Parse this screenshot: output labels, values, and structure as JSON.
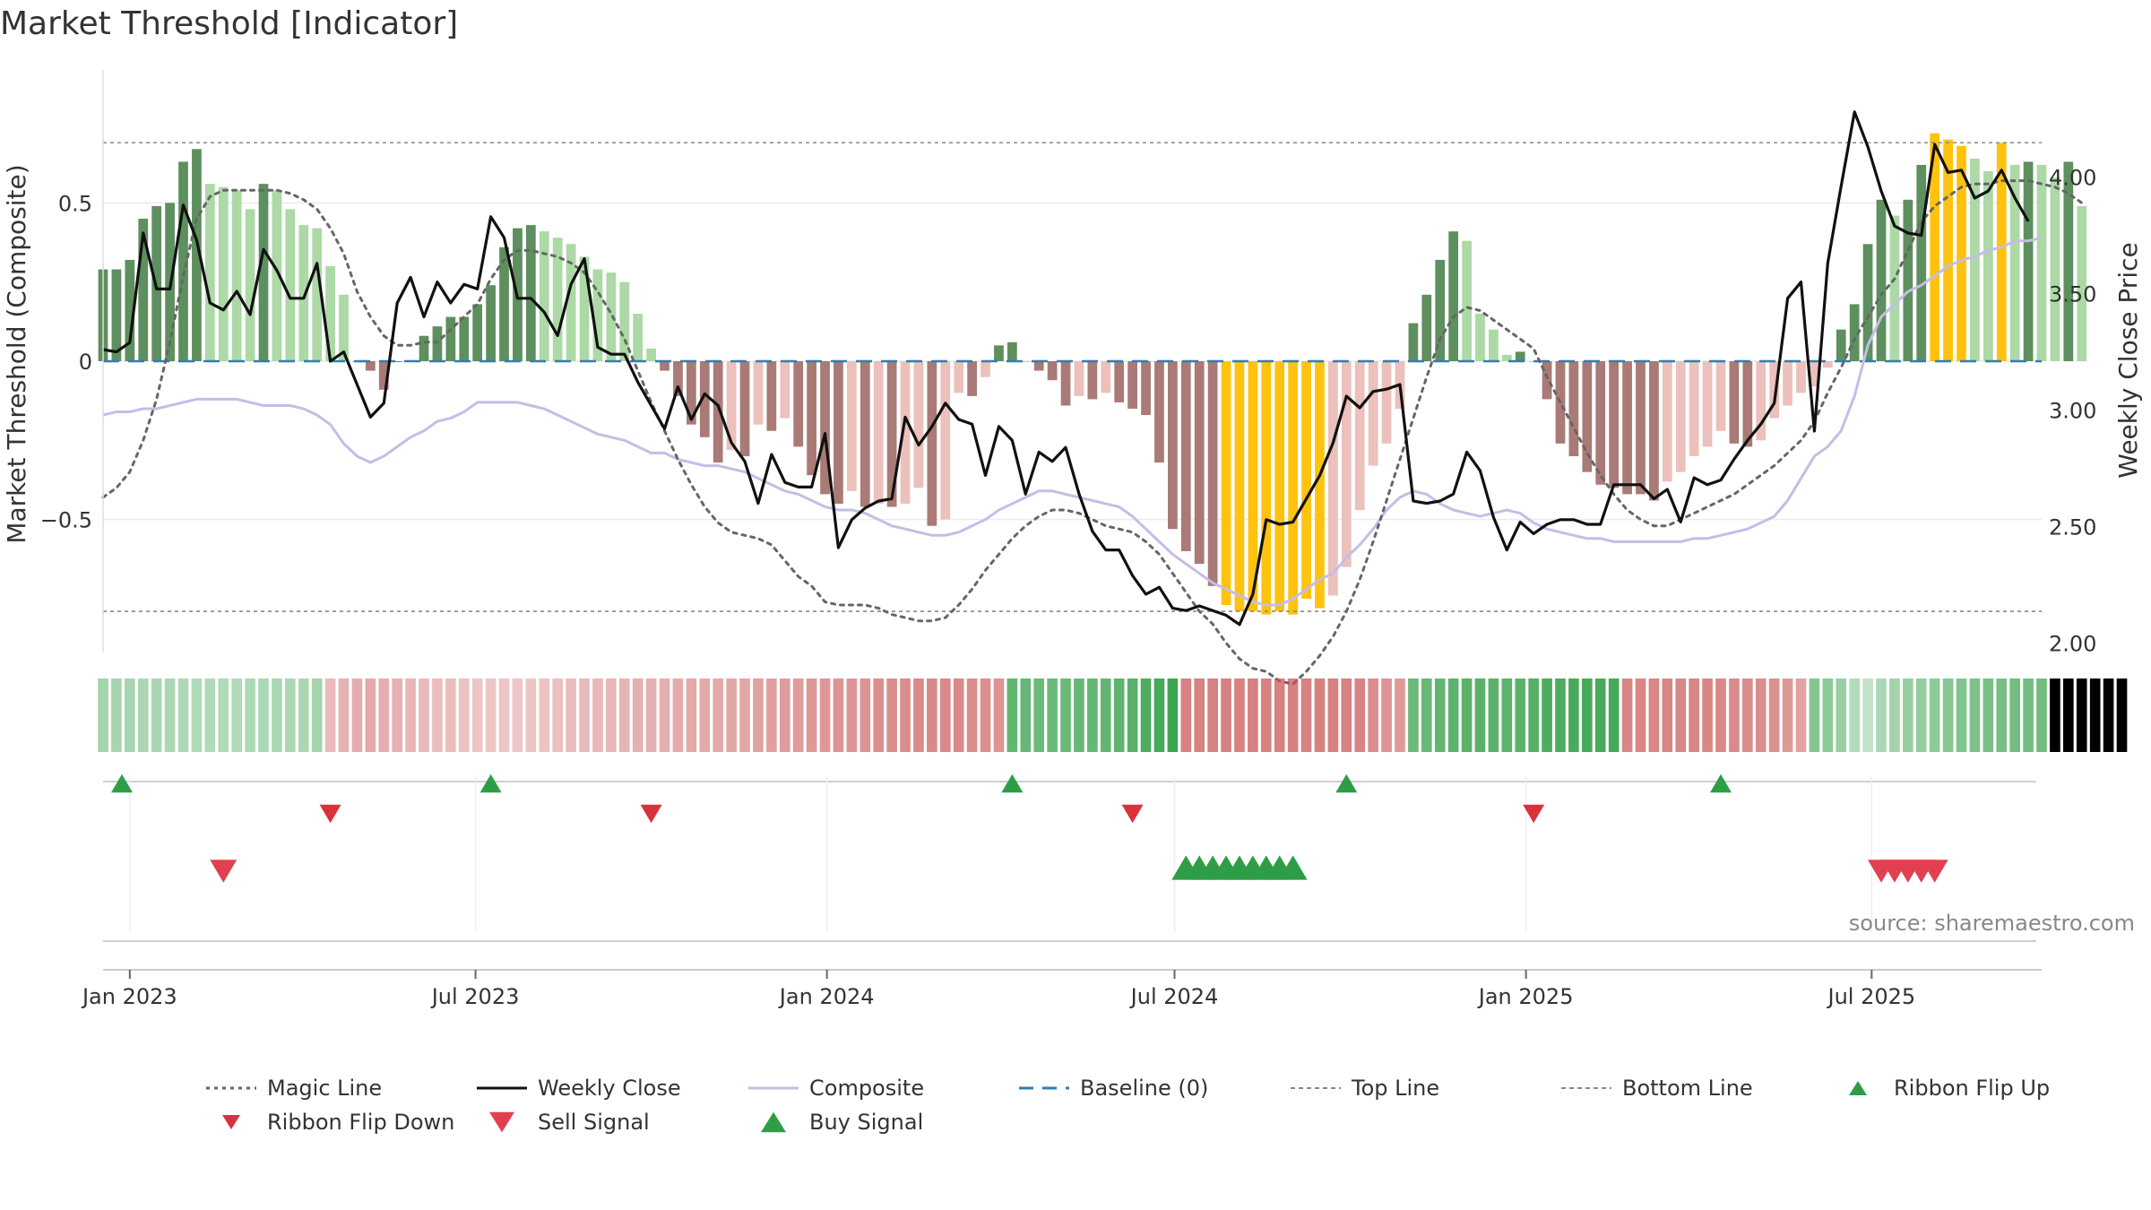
{
  "page": {
    "title": "Market Threshold [Indicator]",
    "source": "source: sharemaestro.com"
  },
  "colors": {
    "bull_dark": "#5e8f5e",
    "bull_light": "#acd9a6",
    "bear_dark": "#a97a76",
    "bear_light": "#ecc0bb",
    "extreme": "#ffc20e",
    "close": "#111111",
    "composite": "#c5bde6",
    "magic": "#666666",
    "baseline": "#2f7fb0",
    "signal_up": "#2e9e46",
    "signal_down": "#d9323a"
  },
  "chart_data": {
    "type": "bar",
    "title": "Market Threshold [Indicator]",
    "ylabel_left": "Market Threshold (Composite)",
    "ylabel_right": "Weekly Close Price",
    "x_tick_labels": [
      "Jan 2023",
      "Jul 2023",
      "Jan 2024",
      "Jul 2024",
      "Jan 2025",
      "Jul 2025"
    ],
    "x_ticks": [
      "2023-01-01",
      "2023-07-01",
      "2024-01-01",
      "2024-07-01",
      "2025-01-01",
      "2025-07-01"
    ],
    "x_range": [
      "2022-12-18",
      "2025-09-28"
    ],
    "y_left_range": [
      -0.92,
      0.92
    ],
    "y_left_ticks": [
      -0.5,
      0,
      0.5
    ],
    "y_left_tick_labels": [
      "−0.5",
      "0",
      "0.5"
    ],
    "y_right_range": [
      1.96,
      4.46
    ],
    "y_right_ticks": [
      2.0,
      2.5,
      3.0,
      3.5,
      4.0
    ],
    "y_right_tick_labels": [
      "2.00",
      "2.50",
      "3.00",
      "3.50",
      "4.00"
    ],
    "top_line": 0.69,
    "bottom_line": -0.79,
    "baseline": 0,
    "week_start": "2022-12-18",
    "composite_bars": [
      0.29,
      0.29,
      0.32,
      0.45,
      0.49,
      0.5,
      0.63,
      0.67,
      0.56,
      0.55,
      0.54,
      0.48,
      0.56,
      0.54,
      0.48,
      0.43,
      0.42,
      0.3,
      0.21,
      0.0,
      -0.03,
      -0.09,
      0.0,
      0.0,
      0.08,
      0.11,
      0.14,
      0.14,
      0.18,
      0.24,
      0.36,
      0.42,
      0.43,
      0.41,
      0.39,
      0.37,
      0.33,
      0.29,
      0.28,
      0.25,
      0.15,
      0.04,
      -0.03,
      -0.11,
      -0.2,
      -0.24,
      -0.32,
      -0.28,
      -0.3,
      -0.2,
      -0.22,
      -0.18,
      -0.27,
      -0.36,
      -0.42,
      -0.45,
      -0.41,
      -0.46,
      -0.45,
      -0.46,
      -0.45,
      -0.4,
      -0.52,
      -0.5,
      -0.1,
      -0.11,
      -0.05,
      0.05,
      0.06,
      0.0,
      -0.03,
      -0.06,
      -0.14,
      -0.11,
      -0.12,
      -0.1,
      -0.13,
      -0.15,
      -0.17,
      -0.32,
      -0.53,
      -0.6,
      -0.64,
      -0.71,
      -0.77,
      -0.79,
      -0.79,
      -0.8,
      -0.79,
      -0.8,
      -0.75,
      -0.78,
      -0.74,
      -0.65,
      -0.47,
      -0.33,
      -0.26,
      -0.15,
      0.12,
      0.21,
      0.32,
      0.41,
      0.38,
      0.15,
      0.1,
      0.02,
      0.03,
      0.0,
      -0.12,
      -0.26,
      -0.3,
      -0.35,
      -0.39,
      -0.4,
      -0.42,
      -0.42,
      -0.44,
      -0.38,
      -0.35,
      -0.3,
      -0.27,
      -0.22,
      -0.26,
      -0.27,
      -0.25,
      -0.18,
      -0.14,
      -0.1,
      -0.08,
      -0.02,
      0.1,
      0.18,
      0.37,
      0.51,
      0.46,
      0.51,
      0.62,
      0.72,
      0.7,
      0.68,
      0.64,
      0.6,
      0.69,
      0.62,
      0.63,
      0.62,
      0.58,
      0.63,
      0.49
    ],
    "ribbon_flips": [
      "up",
      "up",
      "up",
      "up",
      "up",
      "up",
      "up",
      "up",
      "up",
      "up",
      "up",
      "up",
      "up",
      "up",
      "up",
      "up",
      "up",
      "dn",
      "dn",
      "dn",
      "dn",
      "dn",
      "dn",
      "dn",
      "dn",
      "dn",
      "dn",
      "dn",
      "dn",
      "dn",
      "dn",
      "dn",
      "dn",
      "dn",
      "dn",
      "dn",
      "dn",
      "dn",
      "dn",
      "dn",
      "dn",
      "dn",
      "dn",
      "dn",
      "dn",
      "dn",
      "dn",
      "dn",
      "dn",
      "dn",
      "dn",
      "dn",
      "dn",
      "dn",
      "dn",
      "dn",
      "dn",
      "dn",
      "dn",
      "dn",
      "dn",
      "dn",
      "dn",
      "dn",
      "dn",
      "dn",
      "dn",
      "dn",
      "up",
      "up",
      "up",
      "up",
      "up",
      "up",
      "up",
      "up",
      "up",
      "up",
      "up",
      "up",
      "up",
      "dn",
      "dn",
      "dn",
      "dn",
      "dn",
      "dn",
      "dn",
      "dn",
      "dn",
      "dn",
      "dn",
      "dn",
      "dn",
      "dn",
      "dn",
      "dn",
      "dn",
      "up",
      "up",
      "up",
      "up",
      "up",
      "up",
      "up",
      "up",
      "up",
      "up",
      "up",
      "up",
      "up",
      "up",
      "up",
      "up",
      "dn",
      "dn",
      "dn",
      "dn",
      "dn",
      "dn",
      "dn",
      "dn",
      "dn",
      "dn",
      "dn",
      "dn",
      "dn",
      "dn",
      "up",
      "up",
      "up",
      "up",
      "up",
      "up",
      "up",
      "up",
      "up",
      "up",
      "up",
      "up",
      "up",
      "up",
      "up",
      "up",
      "up",
      "up",
      "up",
      "up",
      "up",
      "up",
      "up",
      "up"
    ],
    "weekly_close": [
      3.26,
      3.25,
      3.29,
      3.76,
      3.52,
      3.52,
      3.88,
      3.73,
      3.46,
      3.43,
      3.51,
      3.41,
      3.69,
      3.6,
      3.48,
      3.48,
      3.63,
      3.21,
      3.25,
      3.11,
      2.97,
      3.03,
      3.46,
      3.57,
      3.4,
      3.55,
      3.46,
      3.54,
      3.52,
      3.83,
      3.74,
      3.48,
      3.48,
      3.42,
      3.32,
      3.54,
      3.65,
      3.27,
      3.24,
      3.24,
      3.12,
      3.02,
      2.92,
      3.1,
      2.96,
      3.07,
      3.02,
      2.86,
      2.78,
      2.6,
      2.81,
      2.69,
      2.67,
      2.67,
      2.9,
      2.41,
      2.53,
      2.58,
      2.61,
      2.62,
      2.97,
      2.85,
      2.93,
      3.03,
      2.96,
      2.94,
      2.72,
      2.93,
      2.87,
      2.64,
      2.82,
      2.78,
      2.84,
      2.64,
      2.48,
      2.4,
      2.4,
      2.29,
      2.21,
      2.24,
      2.15,
      2.14,
      2.16,
      2.14,
      2.12,
      2.08,
      2.21,
      2.53,
      2.51,
      2.52,
      2.62,
      2.72,
      2.86,
      3.06,
      3.01,
      3.08,
      3.09,
      3.11,
      2.61,
      2.6,
      2.61,
      2.64,
      2.82,
      2.74,
      2.54,
      2.4,
      2.52,
      2.47,
      2.51,
      2.53,
      2.53,
      2.51,
      2.51,
      2.68,
      2.68,
      2.68,
      2.62,
      2.66,
      2.52,
      2.71,
      2.68,
      2.7,
      2.79,
      2.87,
      2.94,
      3.03,
      3.48,
      3.55,
      2.91,
      3.63,
      3.96,
      4.28,
      4.13,
      3.94,
      3.79,
      3.76,
      3.75,
      4.14,
      4.02,
      4.03,
      3.91,
      3.94,
      4.03,
      3.91,
      3.81
    ],
    "composite_line": [
      -0.17,
      -0.16,
      -0.16,
      -0.15,
      -0.15,
      -0.14,
      -0.13,
      -0.12,
      -0.12,
      -0.12,
      -0.12,
      -0.13,
      -0.14,
      -0.14,
      -0.14,
      -0.15,
      -0.17,
      -0.2,
      -0.26,
      -0.3,
      -0.32,
      -0.3,
      -0.27,
      -0.24,
      -0.22,
      -0.19,
      -0.18,
      -0.16,
      -0.13,
      -0.13,
      -0.13,
      -0.13,
      -0.14,
      -0.15,
      -0.17,
      -0.19,
      -0.21,
      -0.23,
      -0.24,
      -0.25,
      -0.27,
      -0.29,
      -0.29,
      -0.31,
      -0.32,
      -0.33,
      -0.33,
      -0.34,
      -0.35,
      -0.37,
      -0.39,
      -0.41,
      -0.42,
      -0.44,
      -0.46,
      -0.47,
      -0.47,
      -0.48,
      -0.5,
      -0.52,
      -0.53,
      -0.54,
      -0.55,
      -0.55,
      -0.54,
      -0.52,
      -0.5,
      -0.47,
      -0.45,
      -0.43,
      -0.41,
      -0.41,
      -0.42,
      -0.43,
      -0.44,
      -0.45,
      -0.46,
      -0.49,
      -0.53,
      -0.57,
      -0.61,
      -0.64,
      -0.67,
      -0.7,
      -0.72,
      -0.74,
      -0.76,
      -0.77,
      -0.77,
      -0.75,
      -0.72,
      -0.69,
      -0.67,
      -0.62,
      -0.58,
      -0.53,
      -0.47,
      -0.43,
      -0.41,
      -0.42,
      -0.45,
      -0.47,
      -0.48,
      -0.49,
      -0.48,
      -0.47,
      -0.48,
      -0.51,
      -0.53,
      -0.54,
      -0.55,
      -0.56,
      -0.56,
      -0.57,
      -0.57,
      -0.57,
      -0.57,
      -0.57,
      -0.57,
      -0.56,
      -0.56,
      -0.55,
      -0.54,
      -0.53,
      -0.51,
      -0.49,
      -0.44,
      -0.37,
      -0.3,
      -0.27,
      -0.22,
      -0.11,
      0.05,
      0.14,
      0.18,
      0.22,
      0.24,
      0.27,
      0.3,
      0.32,
      0.33,
      0.35,
      0.36,
      0.38,
      0.38,
      0.39
    ],
    "magic_line": [
      -0.43,
      -0.4,
      -0.35,
      -0.25,
      -0.12,
      0.06,
      0.27,
      0.45,
      0.52,
      0.54,
      0.54,
      0.54,
      0.54,
      0.54,
      0.53,
      0.51,
      0.48,
      0.42,
      0.34,
      0.22,
      0.14,
      0.08,
      0.05,
      0.05,
      0.06,
      0.06,
      0.1,
      0.14,
      0.18,
      0.26,
      0.32,
      0.35,
      0.35,
      0.34,
      0.33,
      0.31,
      0.28,
      0.22,
      0.15,
      0.07,
      -0.03,
      -0.13,
      -0.22,
      -0.31,
      -0.39,
      -0.46,
      -0.51,
      -0.54,
      -0.55,
      -0.56,
      -0.58,
      -0.63,
      -0.68,
      -0.71,
      -0.76,
      -0.77,
      -0.77,
      -0.77,
      -0.78,
      -0.8,
      -0.81,
      -0.82,
      -0.82,
      -0.81,
      -0.77,
      -0.72,
      -0.66,
      -0.61,
      -0.56,
      -0.52,
      -0.49,
      -0.47,
      -0.47,
      -0.48,
      -0.5,
      -0.52,
      -0.53,
      -0.54,
      -0.57,
      -0.61,
      -0.67,
      -0.73,
      -0.79,
      -0.83,
      -0.89,
      -0.94,
      -0.97,
      -0.98,
      -1.01,
      -1.02,
      -0.98,
      -0.93,
      -0.87,
      -0.79,
      -0.69,
      -0.57,
      -0.44,
      -0.31,
      -0.18,
      -0.05,
      0.07,
      0.14,
      0.17,
      0.16,
      0.13,
      0.1,
      0.07,
      0.04,
      -0.05,
      -0.13,
      -0.21,
      -0.29,
      -0.36,
      -0.42,
      -0.47,
      -0.5,
      -0.52,
      -0.52,
      -0.5,
      -0.48,
      -0.46,
      -0.44,
      -0.42,
      -0.39,
      -0.36,
      -0.33,
      -0.29,
      -0.25,
      -0.19,
      -0.1,
      -0.02,
      0.07,
      0.14,
      0.21,
      0.26,
      0.35,
      0.44,
      0.49,
      0.52,
      0.55,
      0.56,
      0.56,
      0.57,
      0.57,
      0.57,
      0.56,
      0.55,
      0.53,
      0.5
    ],
    "ribbon_flip_up": [
      "2022-12-18",
      "2023-07-09",
      "2024-04-07",
      "2024-09-29",
      "2025-04-13"
    ],
    "ribbon_flip_down": [
      "2023-04-16",
      "2023-10-01",
      "2024-06-09",
      "2025-01-05"
    ],
    "sell_signals": [
      "2023-02-19",
      "2025-07-06",
      "2025-07-13",
      "2025-07-20",
      "2025-07-27",
      "2025-08-03"
    ],
    "buy_signals": [
      "2024-07-07",
      "2024-07-14",
      "2024-07-21",
      "2024-07-28",
      "2024-08-04",
      "2024-08-11",
      "2024-08-18",
      "2024-08-25",
      "2024-09-01"
    ],
    "legend_placement": "bottom"
  },
  "legend": [
    {
      "key": "magic",
      "label": "Magic Line",
      "style": "dotted",
      "color": "#666666"
    },
    {
      "key": "close",
      "label": "Weekly Close",
      "style": "solid",
      "color": "#111111"
    },
    {
      "key": "composite",
      "label": "Composite",
      "style": "solid",
      "color": "#c5bde6"
    },
    {
      "key": "baseline",
      "label": "Baseline (0)",
      "style": "dashed",
      "color": "#2f7fb0"
    },
    {
      "key": "top",
      "label": "Top Line",
      "style": "dashed-thin",
      "color": "#888888"
    },
    {
      "key": "bottom",
      "label": "Bottom Line",
      "style": "dashed-thin",
      "color": "#888888"
    },
    {
      "key": "flipup",
      "label": "Ribbon Flip Up",
      "style": "tri-up-small",
      "color": "#2e9e46"
    },
    {
      "key": "flipdn",
      "label": "Ribbon Flip Down",
      "style": "tri-down-small",
      "color": "#d9323a"
    },
    {
      "key": "sell",
      "label": "Sell Signal",
      "style": "tri-down",
      "color": "#e04050"
    },
    {
      "key": "buy",
      "label": "Buy Signal",
      "style": "tri-up",
      "color": "#2e9e46"
    }
  ]
}
